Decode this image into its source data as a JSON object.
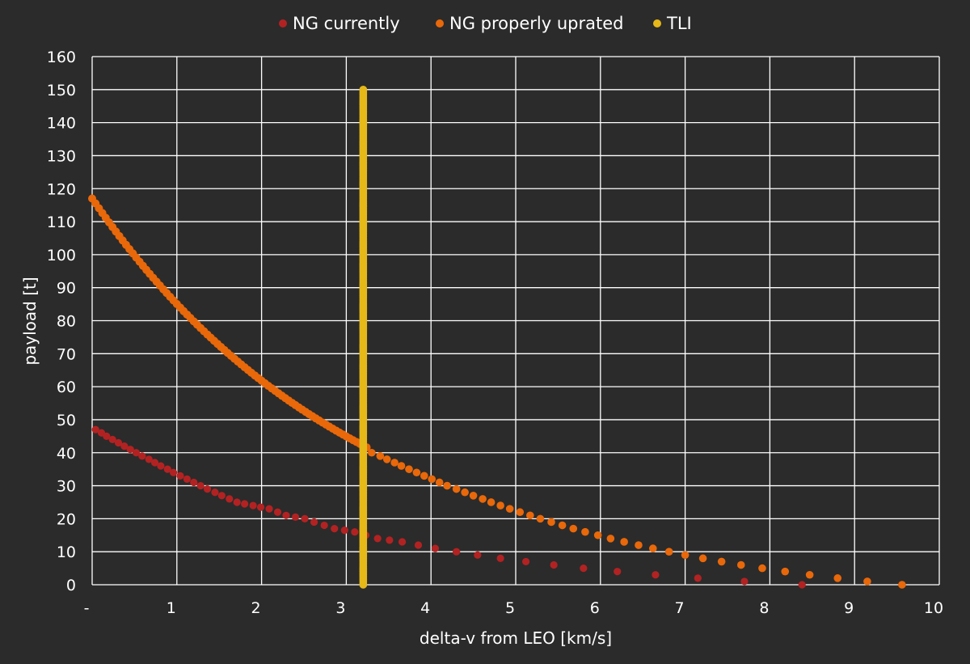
{
  "chart_data": {
    "type": "scatter",
    "xlabel": "delta-v from LEO [km/s]",
    "ylabel": "payload [t]",
    "xlim": [
      0,
      10
    ],
    "ylim": [
      0,
      160
    ],
    "x_ticks": [
      0,
      1,
      2,
      3,
      4,
      5,
      6,
      7,
      8,
      9,
      10
    ],
    "x_tick_labels": [
      "-",
      "1",
      "2",
      "3",
      "4",
      "5",
      "6",
      "7",
      "8",
      "9",
      "10"
    ],
    "y_ticks": [
      0,
      10,
      20,
      30,
      40,
      50,
      60,
      70,
      80,
      90,
      100,
      110,
      120,
      130,
      140,
      150,
      160
    ],
    "grid": true,
    "legend_position": "top-center",
    "series": [
      {
        "name": "NG currently",
        "color": "#b22222",
        "points": [
          [
            0.04,
            47
          ],
          [
            0.11,
            46
          ],
          [
            0.17,
            45
          ],
          [
            0.24,
            44
          ],
          [
            0.31,
            43
          ],
          [
            0.38,
            42
          ],
          [
            0.45,
            41
          ],
          [
            0.52,
            40
          ],
          [
            0.59,
            39
          ],
          [
            0.67,
            38
          ],
          [
            0.74,
            37
          ],
          [
            0.81,
            36
          ],
          [
            0.89,
            35
          ],
          [
            0.96,
            34
          ],
          [
            1.04,
            33
          ],
          [
            1.12,
            32
          ],
          [
            1.2,
            31
          ],
          [
            1.28,
            30
          ],
          [
            1.36,
            29
          ],
          [
            1.45,
            28
          ],
          [
            1.53,
            27
          ],
          [
            1.62,
            26
          ],
          [
            1.71,
            25
          ],
          [
            1.8,
            24.5
          ],
          [
            1.9,
            24
          ],
          [
            1.99,
            23.5
          ],
          [
            2.09,
            23
          ],
          [
            2.19,
            22
          ],
          [
            2.29,
            21
          ],
          [
            2.4,
            20.5
          ],
          [
            2.51,
            20
          ],
          [
            2.62,
            19
          ],
          [
            2.74,
            18
          ],
          [
            2.86,
            17
          ],
          [
            2.98,
            16.5
          ],
          [
            3.1,
            16
          ],
          [
            3.23,
            15
          ],
          [
            3.37,
            14
          ],
          [
            3.51,
            13.5
          ],
          [
            3.66,
            13
          ],
          [
            3.85,
            12
          ],
          [
            4.05,
            11
          ],
          [
            4.3,
            10
          ],
          [
            4.55,
            9
          ],
          [
            4.82,
            8
          ],
          [
            5.12,
            7
          ],
          [
            5.45,
            6
          ],
          [
            5.8,
            5
          ],
          [
            6.2,
            4
          ],
          [
            6.65,
            3
          ],
          [
            7.15,
            2
          ],
          [
            7.7,
            1
          ],
          [
            8.38,
            0
          ]
        ]
      },
      {
        "name": "NG properly uprated",
        "color": "#e8680a",
        "curve": {
          "y0": 117,
          "k": 0.319,
          "x_end": 3.27,
          "step": 0.04
        },
        "points": [
          [
            3.3,
            40
          ],
          [
            3.4,
            39
          ],
          [
            3.48,
            38
          ],
          [
            3.57,
            37
          ],
          [
            3.65,
            36
          ],
          [
            3.74,
            35
          ],
          [
            3.83,
            34
          ],
          [
            3.92,
            33
          ],
          [
            4.01,
            32
          ],
          [
            4.1,
            31
          ],
          [
            4.19,
            30
          ],
          [
            4.3,
            29
          ],
          [
            4.4,
            28
          ],
          [
            4.5,
            27
          ],
          [
            4.61,
            26
          ],
          [
            4.71,
            25
          ],
          [
            4.82,
            24
          ],
          [
            4.93,
            23
          ],
          [
            5.05,
            22
          ],
          [
            5.17,
            21
          ],
          [
            5.29,
            20
          ],
          [
            5.42,
            19
          ],
          [
            5.55,
            18
          ],
          [
            5.68,
            17
          ],
          [
            5.82,
            16
          ],
          [
            5.97,
            15
          ],
          [
            6.12,
            14
          ],
          [
            6.28,
            13
          ],
          [
            6.45,
            12
          ],
          [
            6.62,
            11
          ],
          [
            6.81,
            10
          ],
          [
            7.0,
            9
          ],
          [
            7.21,
            8
          ],
          [
            7.43,
            7
          ],
          [
            7.66,
            6
          ],
          [
            7.91,
            5
          ],
          [
            8.18,
            4
          ],
          [
            8.47,
            3
          ],
          [
            8.8,
            2
          ],
          [
            9.15,
            1
          ],
          [
            9.56,
            0
          ]
        ]
      },
      {
        "name": "TLI",
        "color": "#e6b818",
        "x": 3.2,
        "y_range": [
          0,
          150
        ],
        "step": 0.5
      }
    ]
  }
}
